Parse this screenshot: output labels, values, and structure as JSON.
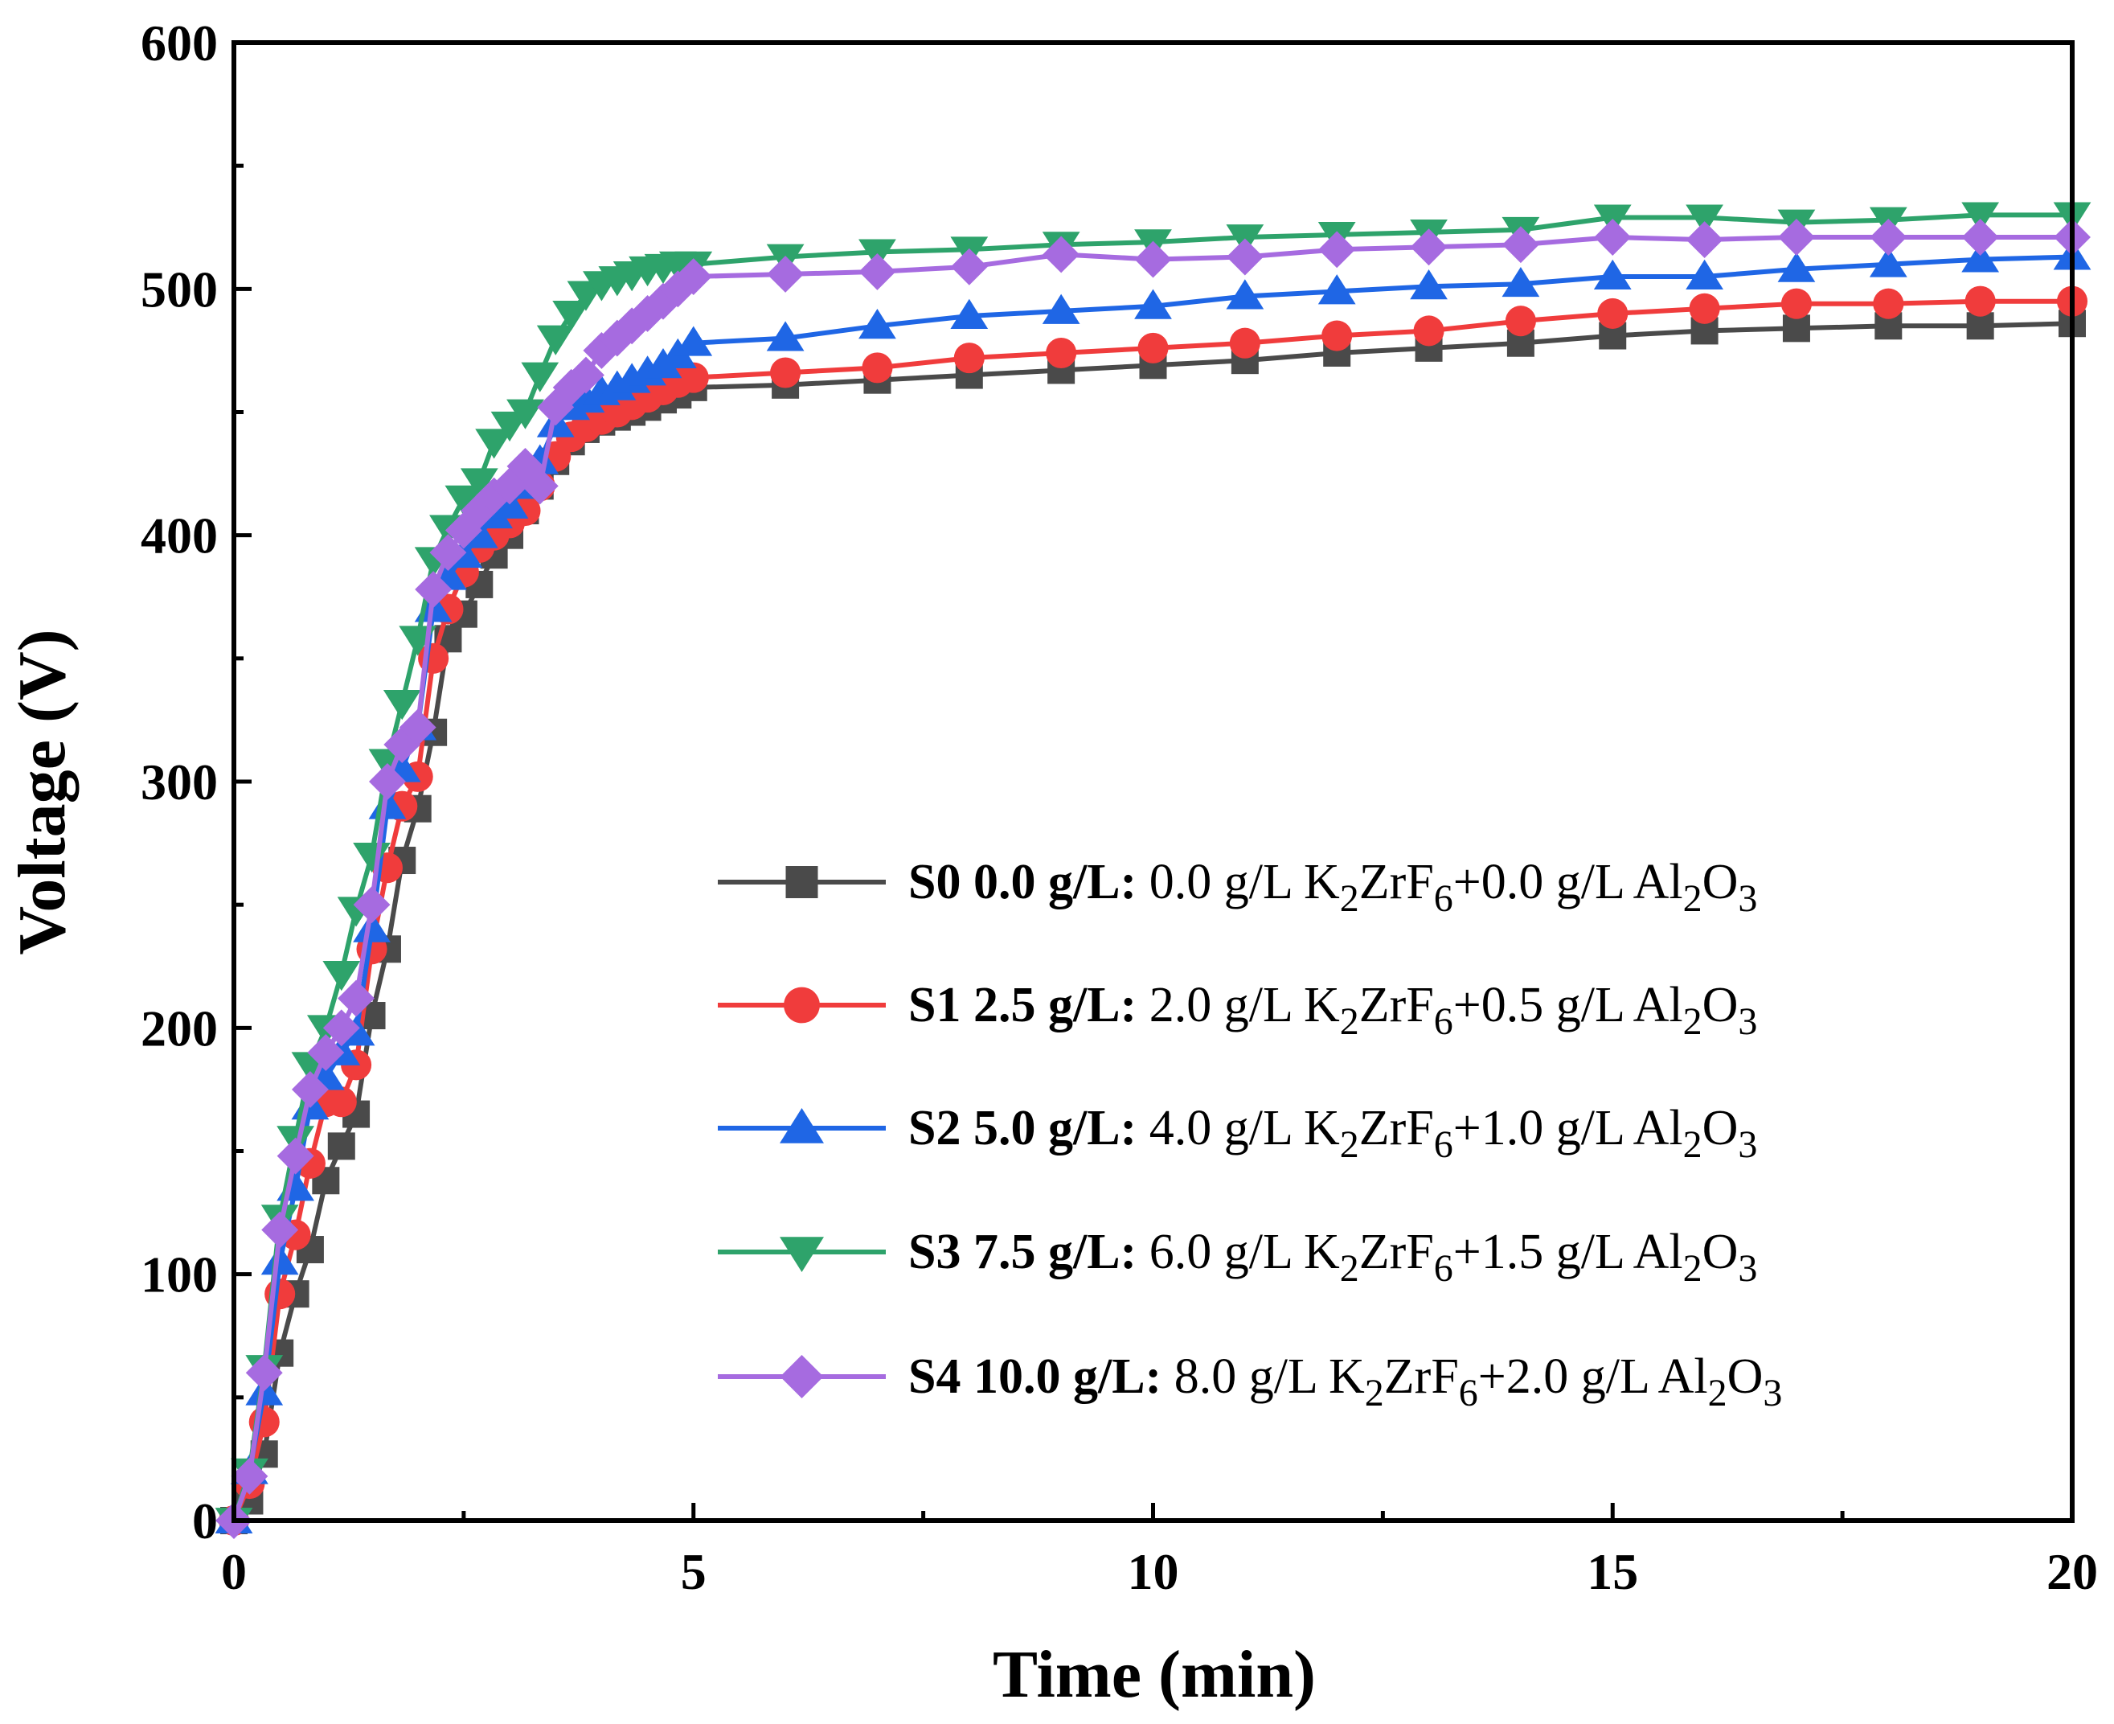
{
  "chart_data": {
    "type": "line",
    "title": "",
    "xlabel": "Time (min)",
    "ylabel": "Voltage (V)",
    "xlim": [
      0,
      20
    ],
    "ylim": [
      0,
      600
    ],
    "xticks": [
      0,
      5,
      10,
      15,
      20
    ],
    "yticks": [
      0,
      100,
      200,
      300,
      400,
      500,
      600
    ],
    "xtick_labels": [
      "0",
      "5",
      "10",
      "15",
      "20"
    ],
    "ytick_labels": [
      "0",
      "100",
      "200",
      "300",
      "400",
      "500",
      "600"
    ],
    "grid": false,
    "legend_position": "lower-right",
    "series": [
      {
        "name": "S0",
        "legend_bold": "S0 0.0 g/L:",
        "legend_parts": [
          "0.0 g/L K",
          "2",
          "ZrF",
          "6",
          "+0.0 g/L Al",
          "2",
          "O",
          "3"
        ],
        "color": "#4a4a4a",
        "marker": "square",
        "x": [
          0,
          0.17,
          0.33,
          0.5,
          0.67,
          0.83,
          1.0,
          1.17,
          1.33,
          1.5,
          1.67,
          1.83,
          2.0,
          2.17,
          2.33,
          2.5,
          2.67,
          2.83,
          3.0,
          3.17,
          3.33,
          3.5,
          3.67,
          3.83,
          4.0,
          4.17,
          4.33,
          4.5,
          4.67,
          4.83,
          5,
          6,
          7,
          8,
          9,
          10,
          11,
          12,
          13,
          14,
          15,
          16,
          17,
          18,
          19,
          20
        ],
        "y": [
          0,
          8,
          27,
          68,
          92,
          110,
          138,
          152,
          165,
          205,
          232,
          268,
          289,
          320,
          358,
          368,
          380,
          392,
          400,
          410,
          420,
          430,
          438,
          443,
          446,
          448,
          450,
          452,
          455,
          457,
          460,
          461,
          463,
          465,
          467,
          469,
          471,
          474,
          476,
          478,
          481,
          483,
          484,
          485,
          485,
          486
        ]
      },
      {
        "name": "S1",
        "legend_bold": "S1 2.5 g/L:",
        "legend_parts": [
          "2.0 g/L K",
          "2",
          "ZrF",
          "6",
          "+0.5 g/L Al",
          "2",
          "O",
          "3"
        ],
        "color": "#f03c3c",
        "marker": "circle",
        "x": [
          0,
          0.17,
          0.33,
          0.5,
          0.67,
          0.83,
          1.0,
          1.17,
          1.33,
          1.5,
          1.67,
          1.83,
          2.0,
          2.17,
          2.33,
          2.5,
          2.67,
          2.83,
          3.0,
          3.17,
          3.33,
          3.5,
          3.67,
          3.83,
          4.0,
          4.17,
          4.33,
          4.5,
          4.67,
          4.83,
          5,
          6,
          7,
          8,
          9,
          10,
          11,
          12,
          13,
          14,
          15,
          16,
          17,
          18,
          19,
          20
        ],
        "y": [
          0,
          15,
          40,
          92,
          116,
          145,
          170,
          170,
          185,
          232,
          265,
          290,
          302,
          350,
          370,
          385,
          395,
          400,
          405,
          410,
          420,
          432,
          440,
          444,
          447,
          450,
          453,
          456,
          459,
          462,
          464,
          466,
          468,
          472,
          474,
          476,
          478,
          481,
          483,
          487,
          490,
          492,
          494,
          494,
          495,
          495
        ]
      },
      {
        "name": "S2",
        "legend_bold": "S2 5.0 g/L:",
        "legend_parts": [
          "4.0 g/L K",
          "2",
          "ZrF",
          "6",
          "+1.0 g/L Al",
          "2",
          "O",
          "3"
        ],
        "color": "#1f66e5",
        "marker": "triangle-up",
        "x": [
          0,
          0.17,
          0.33,
          0.5,
          0.67,
          0.83,
          1.0,
          1.17,
          1.33,
          1.5,
          1.67,
          1.83,
          2.0,
          2.17,
          2.33,
          2.5,
          2.67,
          2.83,
          3.0,
          3.17,
          3.33,
          3.5,
          3.67,
          3.83,
          4.0,
          4.17,
          4.33,
          4.5,
          4.67,
          4.83,
          5,
          6,
          7,
          8,
          9,
          10,
          11,
          12,
          13,
          14,
          15,
          16,
          17,
          18,
          19,
          20
        ],
        "y": [
          0,
          20,
          52,
          105,
          135,
          168,
          180,
          190,
          198,
          240,
          290,
          305,
          322,
          370,
          383,
          392,
          400,
          408,
          412,
          420,
          430,
          445,
          452,
          455,
          458,
          460,
          463,
          466,
          469,
          473,
          478,
          480,
          485,
          489,
          491,
          493,
          497,
          499,
          501,
          502,
          505,
          505,
          508,
          510,
          512,
          513
        ]
      },
      {
        "name": "S3",
        "legend_bold": "S3 7.5 g/L:",
        "legend_parts": [
          "6.0 g/L K",
          "2",
          "ZrF",
          "6",
          "+1.5 g/L Al",
          "2",
          "O",
          "3"
        ],
        "color": "#2ea36b",
        "marker": "triangle-down",
        "x": [
          0,
          0.17,
          0.33,
          0.5,
          0.67,
          0.83,
          1.0,
          1.17,
          1.33,
          1.5,
          1.67,
          1.83,
          2.0,
          2.17,
          2.33,
          2.5,
          2.67,
          2.83,
          3.0,
          3.17,
          3.33,
          3.5,
          3.67,
          3.83,
          4.0,
          4.17,
          4.33,
          4.5,
          4.67,
          4.83,
          5,
          6,
          7,
          8,
          9,
          10,
          11,
          12,
          13,
          14,
          15,
          16,
          17,
          18,
          19,
          20
        ],
        "y": [
          0,
          20,
          62,
          123,
          155,
          185,
          200,
          222,
          248,
          270,
          308,
          332,
          358,
          390,
          403,
          415,
          422,
          438,
          445,
          450,
          465,
          480,
          490,
          498,
          502,
          504,
          506,
          508,
          509,
          510,
          510,
          513,
          515,
          516,
          518,
          519,
          521,
          522,
          523,
          524,
          529,
          529,
          527,
          528,
          530,
          530
        ]
      },
      {
        "name": "S4",
        "legend_bold": "S4 10.0 g/L:",
        "legend_parts": [
          "8.0 g/L K",
          "2",
          "ZrF",
          "6",
          "+2.0 g/L Al",
          "2",
          "O",
          "3"
        ],
        "color": "#a66be0",
        "marker": "diamond",
        "x": [
          0,
          0.17,
          0.33,
          0.5,
          0.67,
          0.83,
          1.0,
          1.17,
          1.33,
          1.5,
          1.67,
          1.83,
          2.0,
          2.17,
          2.33,
          2.5,
          2.67,
          2.83,
          3.0,
          3.17,
          3.33,
          3.5,
          3.67,
          3.83,
          4.0,
          4.17,
          4.33,
          4.5,
          4.67,
          4.83,
          5,
          6,
          7,
          8,
          9,
          10,
          11,
          12,
          13,
          14,
          15,
          16,
          17,
          18,
          19,
          20
        ],
        "y": [
          0,
          18,
          60,
          118,
          148,
          175,
          190,
          200,
          212,
          250,
          300,
          315,
          322,
          378,
          393,
          402,
          410,
          416,
          420,
          428,
          420,
          452,
          460,
          465,
          475,
          480,
          485,
          490,
          495,
          500,
          505,
          506,
          507,
          509,
          514,
          512,
          513,
          516,
          517,
          518,
          521,
          520,
          521,
          521,
          521,
          521
        ]
      }
    ]
  }
}
